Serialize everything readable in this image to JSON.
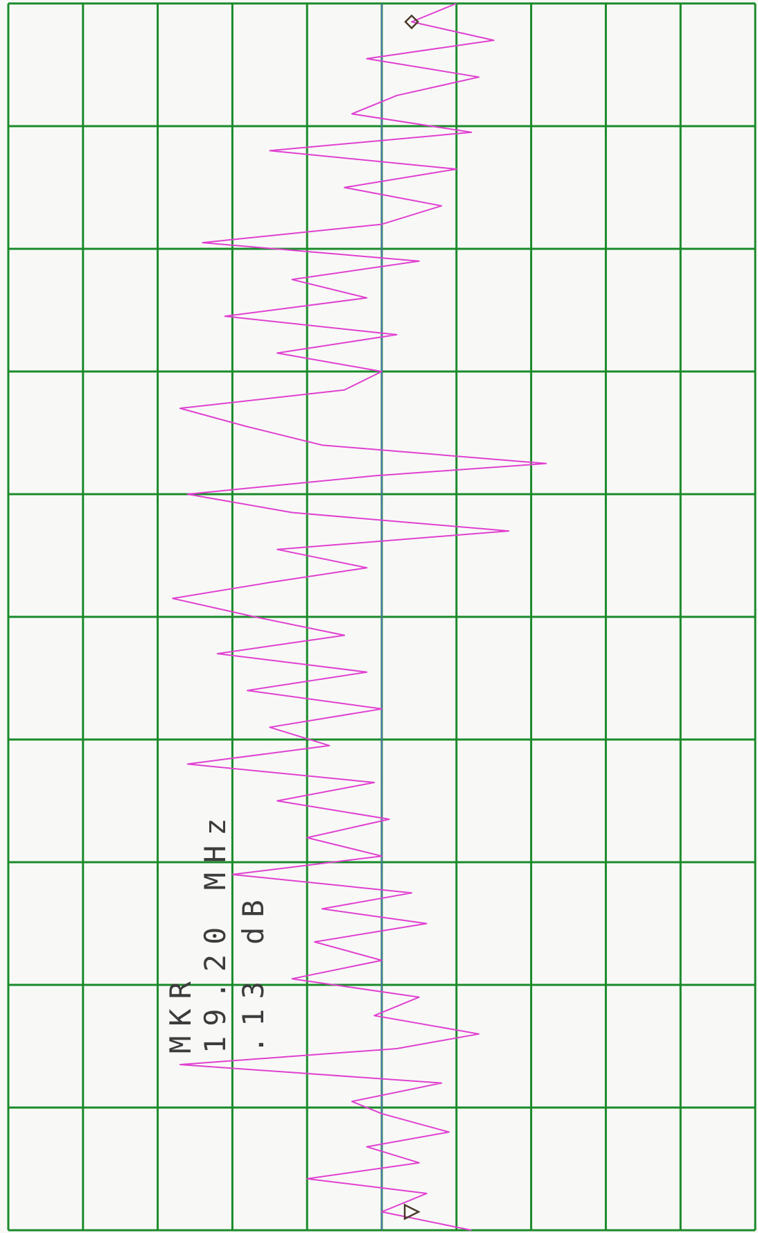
{
  "annotation": {
    "line1": "MKR",
    "line2": "19.20 MHz",
    "line3": ".13 dB"
  },
  "colors": {
    "paper": "#f8f9f7",
    "grid": "#1a8a2a",
    "trace": "#e040d0",
    "reference_line": "#5a6fd0",
    "marker": "#4a3a2a",
    "text": "#3c3c3c"
  },
  "chart_data": {
    "type": "line",
    "orientation": "rotated-90",
    "title": "",
    "xlabel": "",
    "ylabel": "",
    "grid": true,
    "divisions": {
      "frequency": 10,
      "amplitude": 10
    },
    "marker": {
      "frequency_mhz": 19.2,
      "amplitude_db": 0.13
    },
    "reference_level_div": 5.0,
    "trace_div": [
      [
        0.0,
        6.2
      ],
      [
        0.15,
        5.0
      ],
      [
        0.3,
        5.6
      ],
      [
        0.42,
        4.0
      ],
      [
        0.55,
        5.5
      ],
      [
        0.68,
        4.8
      ],
      [
        0.8,
        5.9
      ],
      [
        0.95,
        5.0
      ],
      [
        1.05,
        4.6
      ],
      [
        1.2,
        5.8
      ],
      [
        1.35,
        2.3
      ],
      [
        1.48,
        5.2
      ],
      [
        1.6,
        6.3
      ],
      [
        1.75,
        4.9
      ],
      [
        1.9,
        5.5
      ],
      [
        2.05,
        3.8
      ],
      [
        2.2,
        5.0
      ],
      [
        2.35,
        4.1
      ],
      [
        2.5,
        5.6
      ],
      [
        2.62,
        4.2
      ],
      [
        2.75,
        5.4
      ],
      [
        2.9,
        3.0
      ],
      [
        3.05,
        5.0
      ],
      [
        3.2,
        4.0
      ],
      [
        3.35,
        5.1
      ],
      [
        3.5,
        3.6
      ],
      [
        3.65,
        4.9
      ],
      [
        3.8,
        2.4
      ],
      [
        3.95,
        4.3
      ],
      [
        4.1,
        3.5
      ],
      [
        4.25,
        5.0
      ],
      [
        4.4,
        3.2
      ],
      [
        4.55,
        4.8
      ],
      [
        4.7,
        2.8
      ],
      [
        4.85,
        4.5
      ],
      [
        5.0,
        3.3
      ],
      [
        5.15,
        2.2
      ],
      [
        5.28,
        3.5
      ],
      [
        5.4,
        4.8
      ],
      [
        5.55,
        3.6
      ],
      [
        5.7,
        6.7
      ],
      [
        5.85,
        3.8
      ],
      [
        6.0,
        2.4
      ],
      [
        6.15,
        4.9
      ],
      [
        6.25,
        7.2
      ],
      [
        6.4,
        4.2
      ],
      [
        6.55,
        3.2
      ],
      [
        6.7,
        2.3
      ],
      [
        6.85,
        4.5
      ],
      [
        7.0,
        5.0
      ],
      [
        7.15,
        3.6
      ],
      [
        7.3,
        5.2
      ],
      [
        7.45,
        2.9
      ],
      [
        7.6,
        4.8
      ],
      [
        7.75,
        3.8
      ],
      [
        7.9,
        5.5
      ],
      [
        8.05,
        2.6
      ],
      [
        8.2,
        5.0
      ],
      [
        8.35,
        5.8
      ],
      [
        8.5,
        4.5
      ],
      [
        8.65,
        6.0
      ],
      [
        8.8,
        3.5
      ],
      [
        8.95,
        6.2
      ],
      [
        9.1,
        4.6
      ],
      [
        9.25,
        5.2
      ],
      [
        9.4,
        6.3
      ],
      [
        9.55,
        4.8
      ],
      [
        9.7,
        6.5
      ],
      [
        9.85,
        5.4
      ],
      [
        10.0,
        6.0
      ]
    ]
  }
}
